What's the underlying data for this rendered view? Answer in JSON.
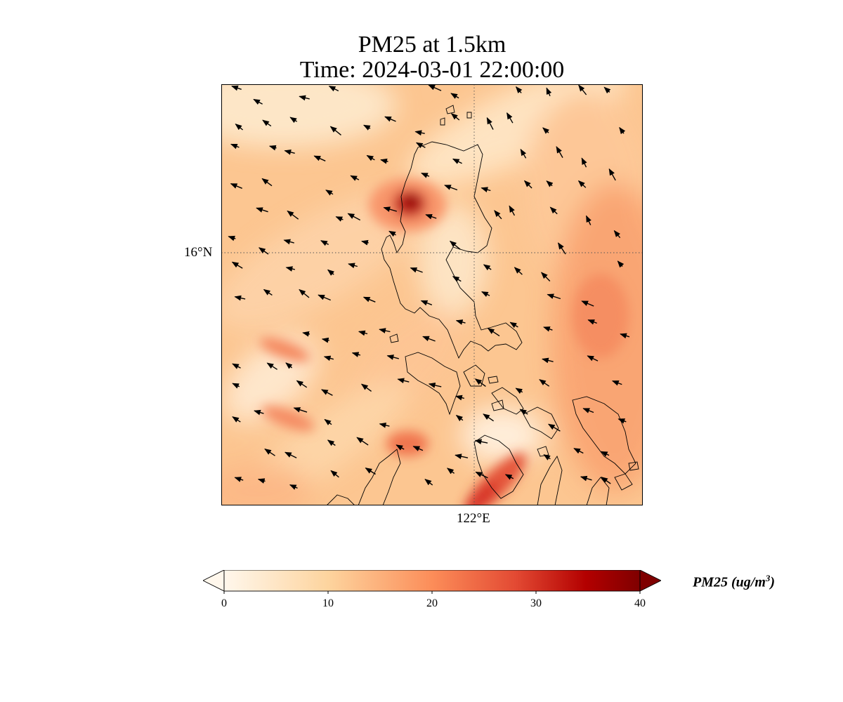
{
  "title": {
    "line1": "PM25 at 1.5km",
    "line2": "Time: 2024-03-01 22:00:00"
  },
  "map": {
    "lat_label": "16°N",
    "lon_label": "122°E",
    "gridlines": "dotted",
    "vector_field": "wind arrows (mostly toward the west-southwest)"
  },
  "colorbar": {
    "ticks": [
      "0",
      "10",
      "20",
      "30",
      "40"
    ],
    "label_prefix": "PM25 (ug/m",
    "label_exponent": "3",
    "label_suffix": ")",
    "colormap": "OrRd",
    "extend": "both",
    "colors": [
      "#fff7ec",
      "#fdd49e",
      "#fc8d59",
      "#d7301f",
      "#b30000",
      "#7f0000"
    ]
  }
}
